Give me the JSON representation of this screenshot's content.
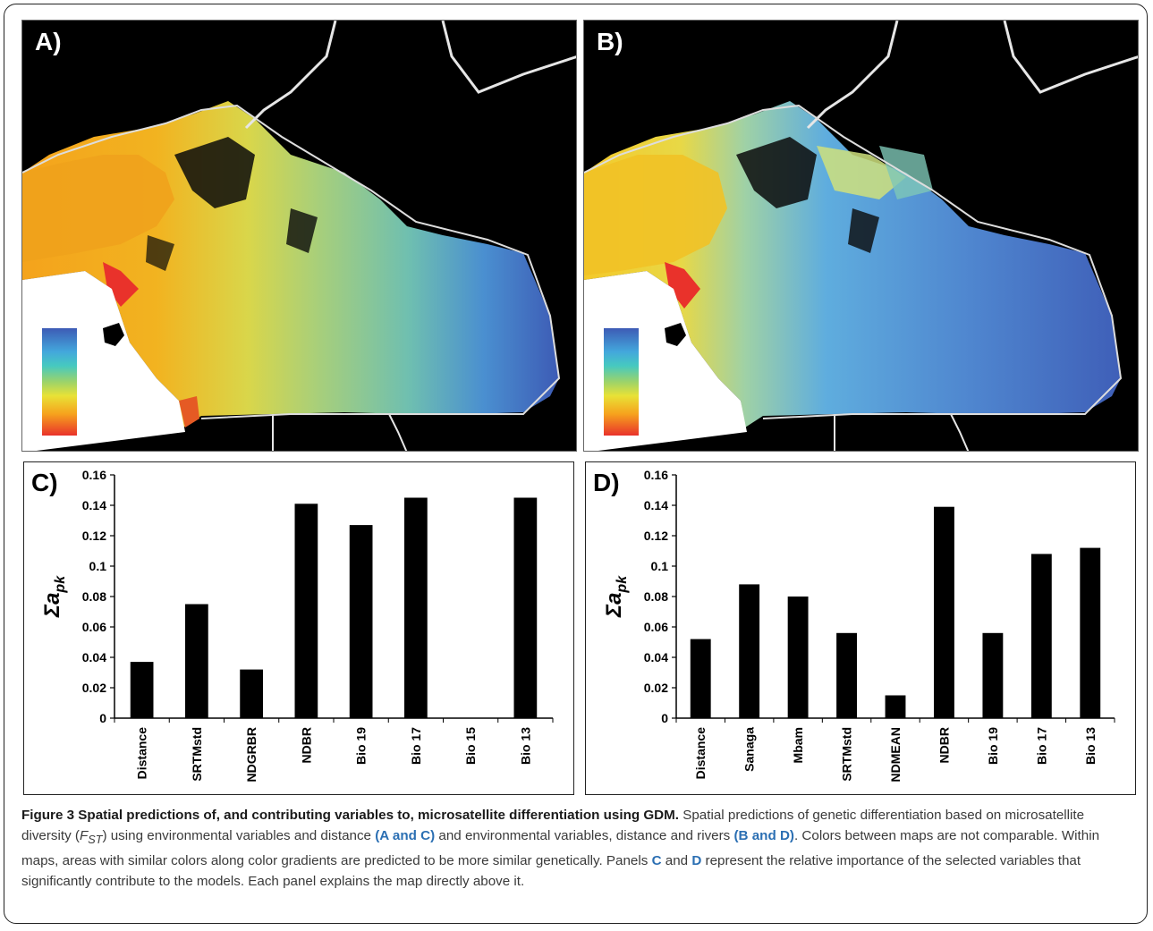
{
  "maps": [
    {
      "label": "A)"
    },
    {
      "label": "B)"
    }
  ],
  "chart_data": [
    {
      "type": "bar",
      "panel_label": "C)",
      "ylabel_main": "Σa",
      "ylabel_sub": "pk",
      "categories": [
        "Distance",
        "SRTMstd",
        "NDGRBR",
        "NDBR",
        "Bio 19",
        "Bio 17",
        "Bio 15",
        "Bio 13"
      ],
      "values": [
        0.037,
        0.075,
        0.032,
        0.141,
        0.127,
        0.145,
        0.0,
        0.145
      ],
      "yticks": [
        "0",
        "0.02",
        "0.04",
        "0.06",
        "0.08",
        "0.1",
        "0.12",
        "0.14",
        "0.16"
      ],
      "ylim": [
        0,
        0.16
      ],
      "bar_color": "#000000"
    },
    {
      "type": "bar",
      "panel_label": "D)",
      "ylabel_main": "Σa",
      "ylabel_sub": "pk",
      "categories": [
        "Distance",
        "Sanaga",
        "Mbam",
        "SRTMstd",
        "NDMEAN",
        "NDBR",
        "Bio 19",
        "Bio 17",
        "Bio 13"
      ],
      "values": [
        0.052,
        0.088,
        0.08,
        0.056,
        0.015,
        0.139,
        0.056,
        0.108,
        0.112
      ],
      "yticks": [
        "0",
        "0.02",
        "0.04",
        "0.06",
        "0.08",
        "0.1",
        "0.12",
        "0.14",
        "0.16"
      ],
      "ylim": [
        0,
        0.16
      ],
      "bar_color": "#000000"
    }
  ],
  "caption": {
    "title": "Figure 3 Spatial predictions of, and contributing variables to, microsatellite differentiation using GDM.",
    "t1": " Spatial predictions of genetic differentiation based on microsatellite diversity (",
    "fst_main": "F",
    "fst_sub": "ST",
    "t2": ") using environmental variables and distance ",
    "ref_ac": "(A and C)",
    "t3": " and environmental variables, distance and rivers ",
    "ref_bd": "(B and D)",
    "t4": ". Colors between maps are not comparable. Within maps, areas with similar colors along color gradients are predicted to be more similar genetically. Panels ",
    "ref_c": "C",
    "t5": " and ",
    "ref_d": "D",
    "t6": " represent the relative importance of the selected variables that significantly contribute to the models. Each panel explains the map directly above it."
  },
  "colors": {
    "caption_text": "#3a3a3a",
    "caption_ref": "#2b6fb3",
    "legend": [
      "#3d5bb5",
      "#43a8dc",
      "#46c9c0",
      "#9cd36a",
      "#e8e236",
      "#f6a21d",
      "#e9322b"
    ]
  }
}
